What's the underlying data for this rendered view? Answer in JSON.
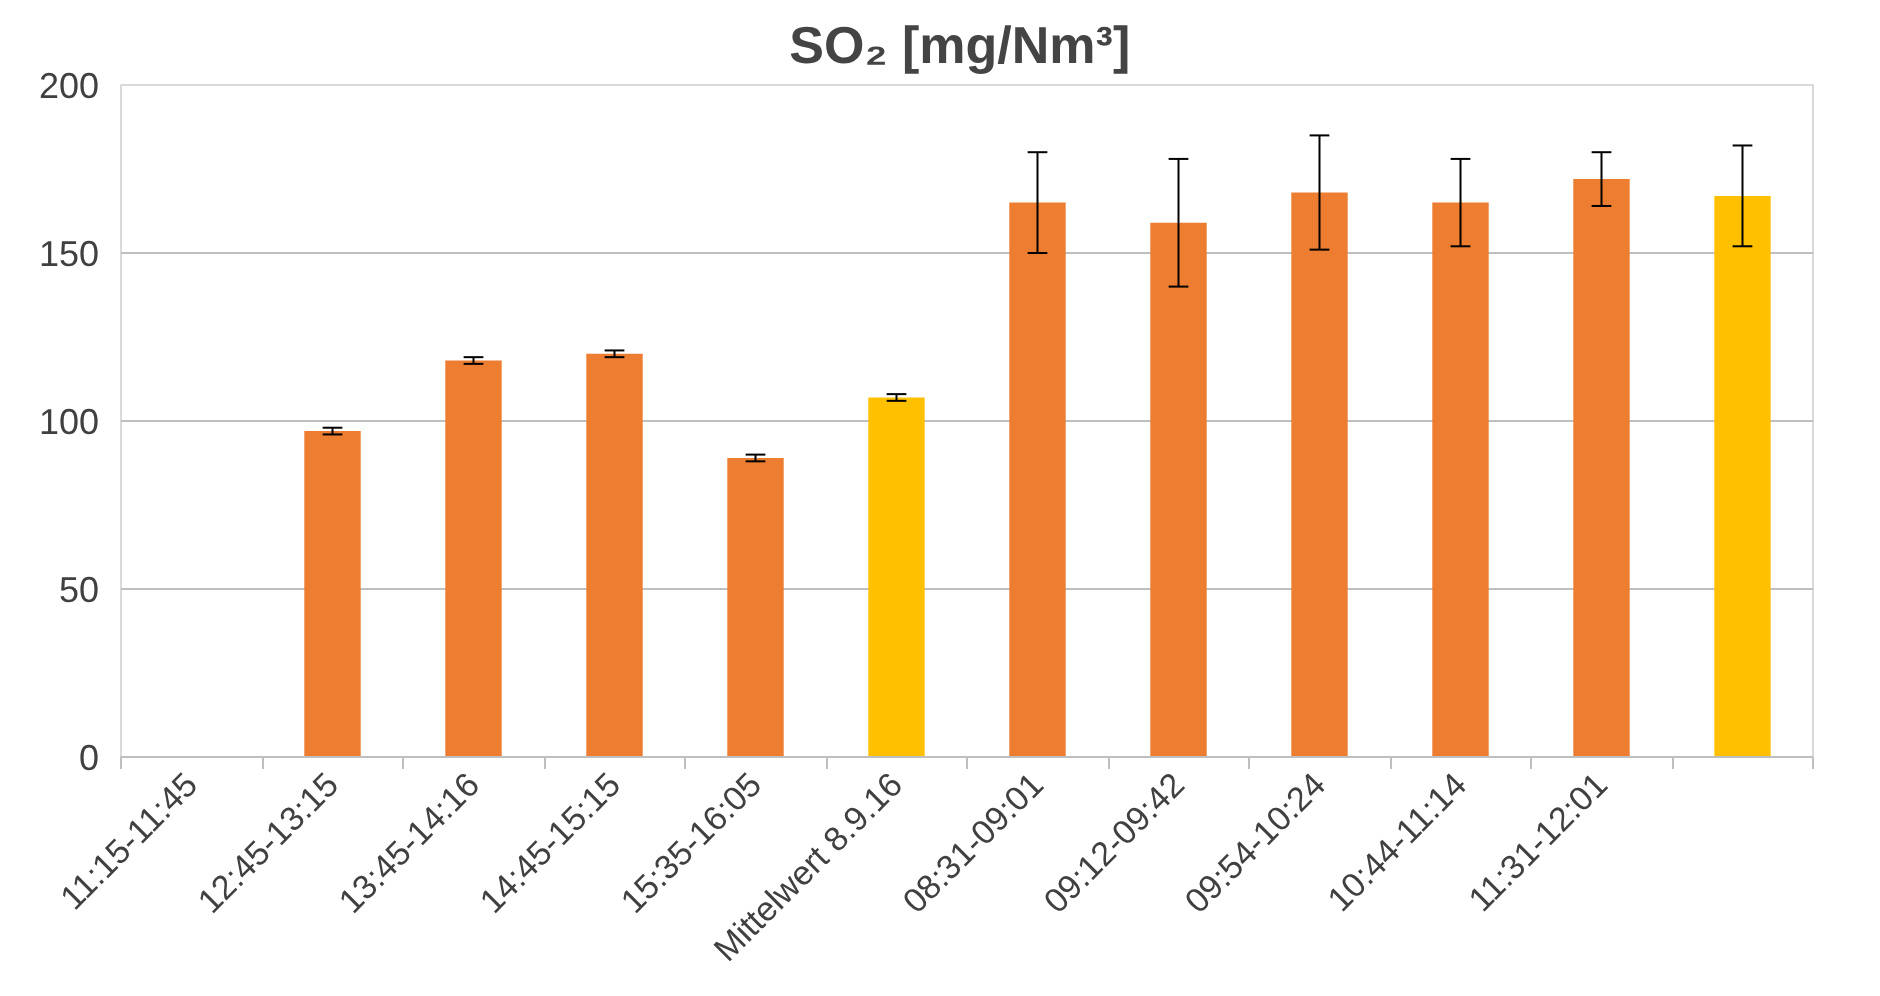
{
  "chart_data": {
    "type": "bar",
    "title": "SO₂  [mg/Nm³]",
    "categories": [
      "11:15-11:45",
      "12:45-13:15",
      "13:45-14:16",
      "14:45-15:15",
      "15:35-16:05",
      "Mittelwert 8.9.16",
      "08:31-09:01",
      "09:12-09:42",
      "09:54-10:24",
      "10:44-11:14",
      "11:31-12:01",
      null
    ],
    "values": [
      null,
      97,
      118,
      120,
      89,
      107,
      165,
      159,
      168,
      165,
      172,
      167
    ],
    "colors": [
      "#ed7d31",
      "#ed7d31",
      "#ed7d31",
      "#ed7d31",
      "#ed7d31",
      "#ffc000",
      "#ed7d31",
      "#ed7d31",
      "#ed7d31",
      "#ed7d31",
      "#ed7d31",
      "#ffc000"
    ],
    "errors": [
      null,
      1,
      1,
      1,
      1,
      1,
      15,
      19,
      17,
      13,
      8,
      15
    ],
    "ylim": [
      0,
      200
    ],
    "yticks": [
      0,
      50,
      100,
      150,
      200
    ],
    "grid": "y"
  }
}
